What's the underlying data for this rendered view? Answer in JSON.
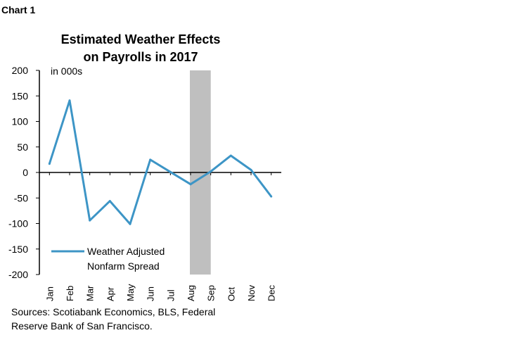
{
  "chart_label": "Chart 1",
  "chart_data": {
    "type": "line",
    "title_line1": "Estimated Weather Effects",
    "title_line2": "on Payrolls in 2017",
    "unit_label": "in 000s",
    "categories": [
      "Jan",
      "Feb",
      "Mar",
      "Apr",
      "May",
      "Jun",
      "Jul",
      "Aug",
      "Sep",
      "Oct",
      "Nov",
      "Dec"
    ],
    "series": [
      {
        "name_line1": "Weather Adjusted",
        "name_line2": "Nonfarm Spread",
        "color": "#3d95c6",
        "values": [
          17,
          141,
          -94,
          -56,
          -101,
          25,
          1,
          -23,
          2,
          33,
          5,
          -47
        ]
      }
    ],
    "ylim": [
      -200,
      200
    ],
    "yticks": [
      "200",
      "150",
      "100",
      "50",
      "0",
      "-50",
      "-100",
      "-150",
      "-200"
    ],
    "shaded_region": {
      "from": "Aug",
      "to": "Sep",
      "color": "#bfbfbf"
    },
    "grid": false,
    "legend_position": "bottom-left"
  },
  "source": {
    "line1": "Sources: Scotiabank Economics, BLS, Federal",
    "line2": "Reserve Bank of San Francisco."
  }
}
